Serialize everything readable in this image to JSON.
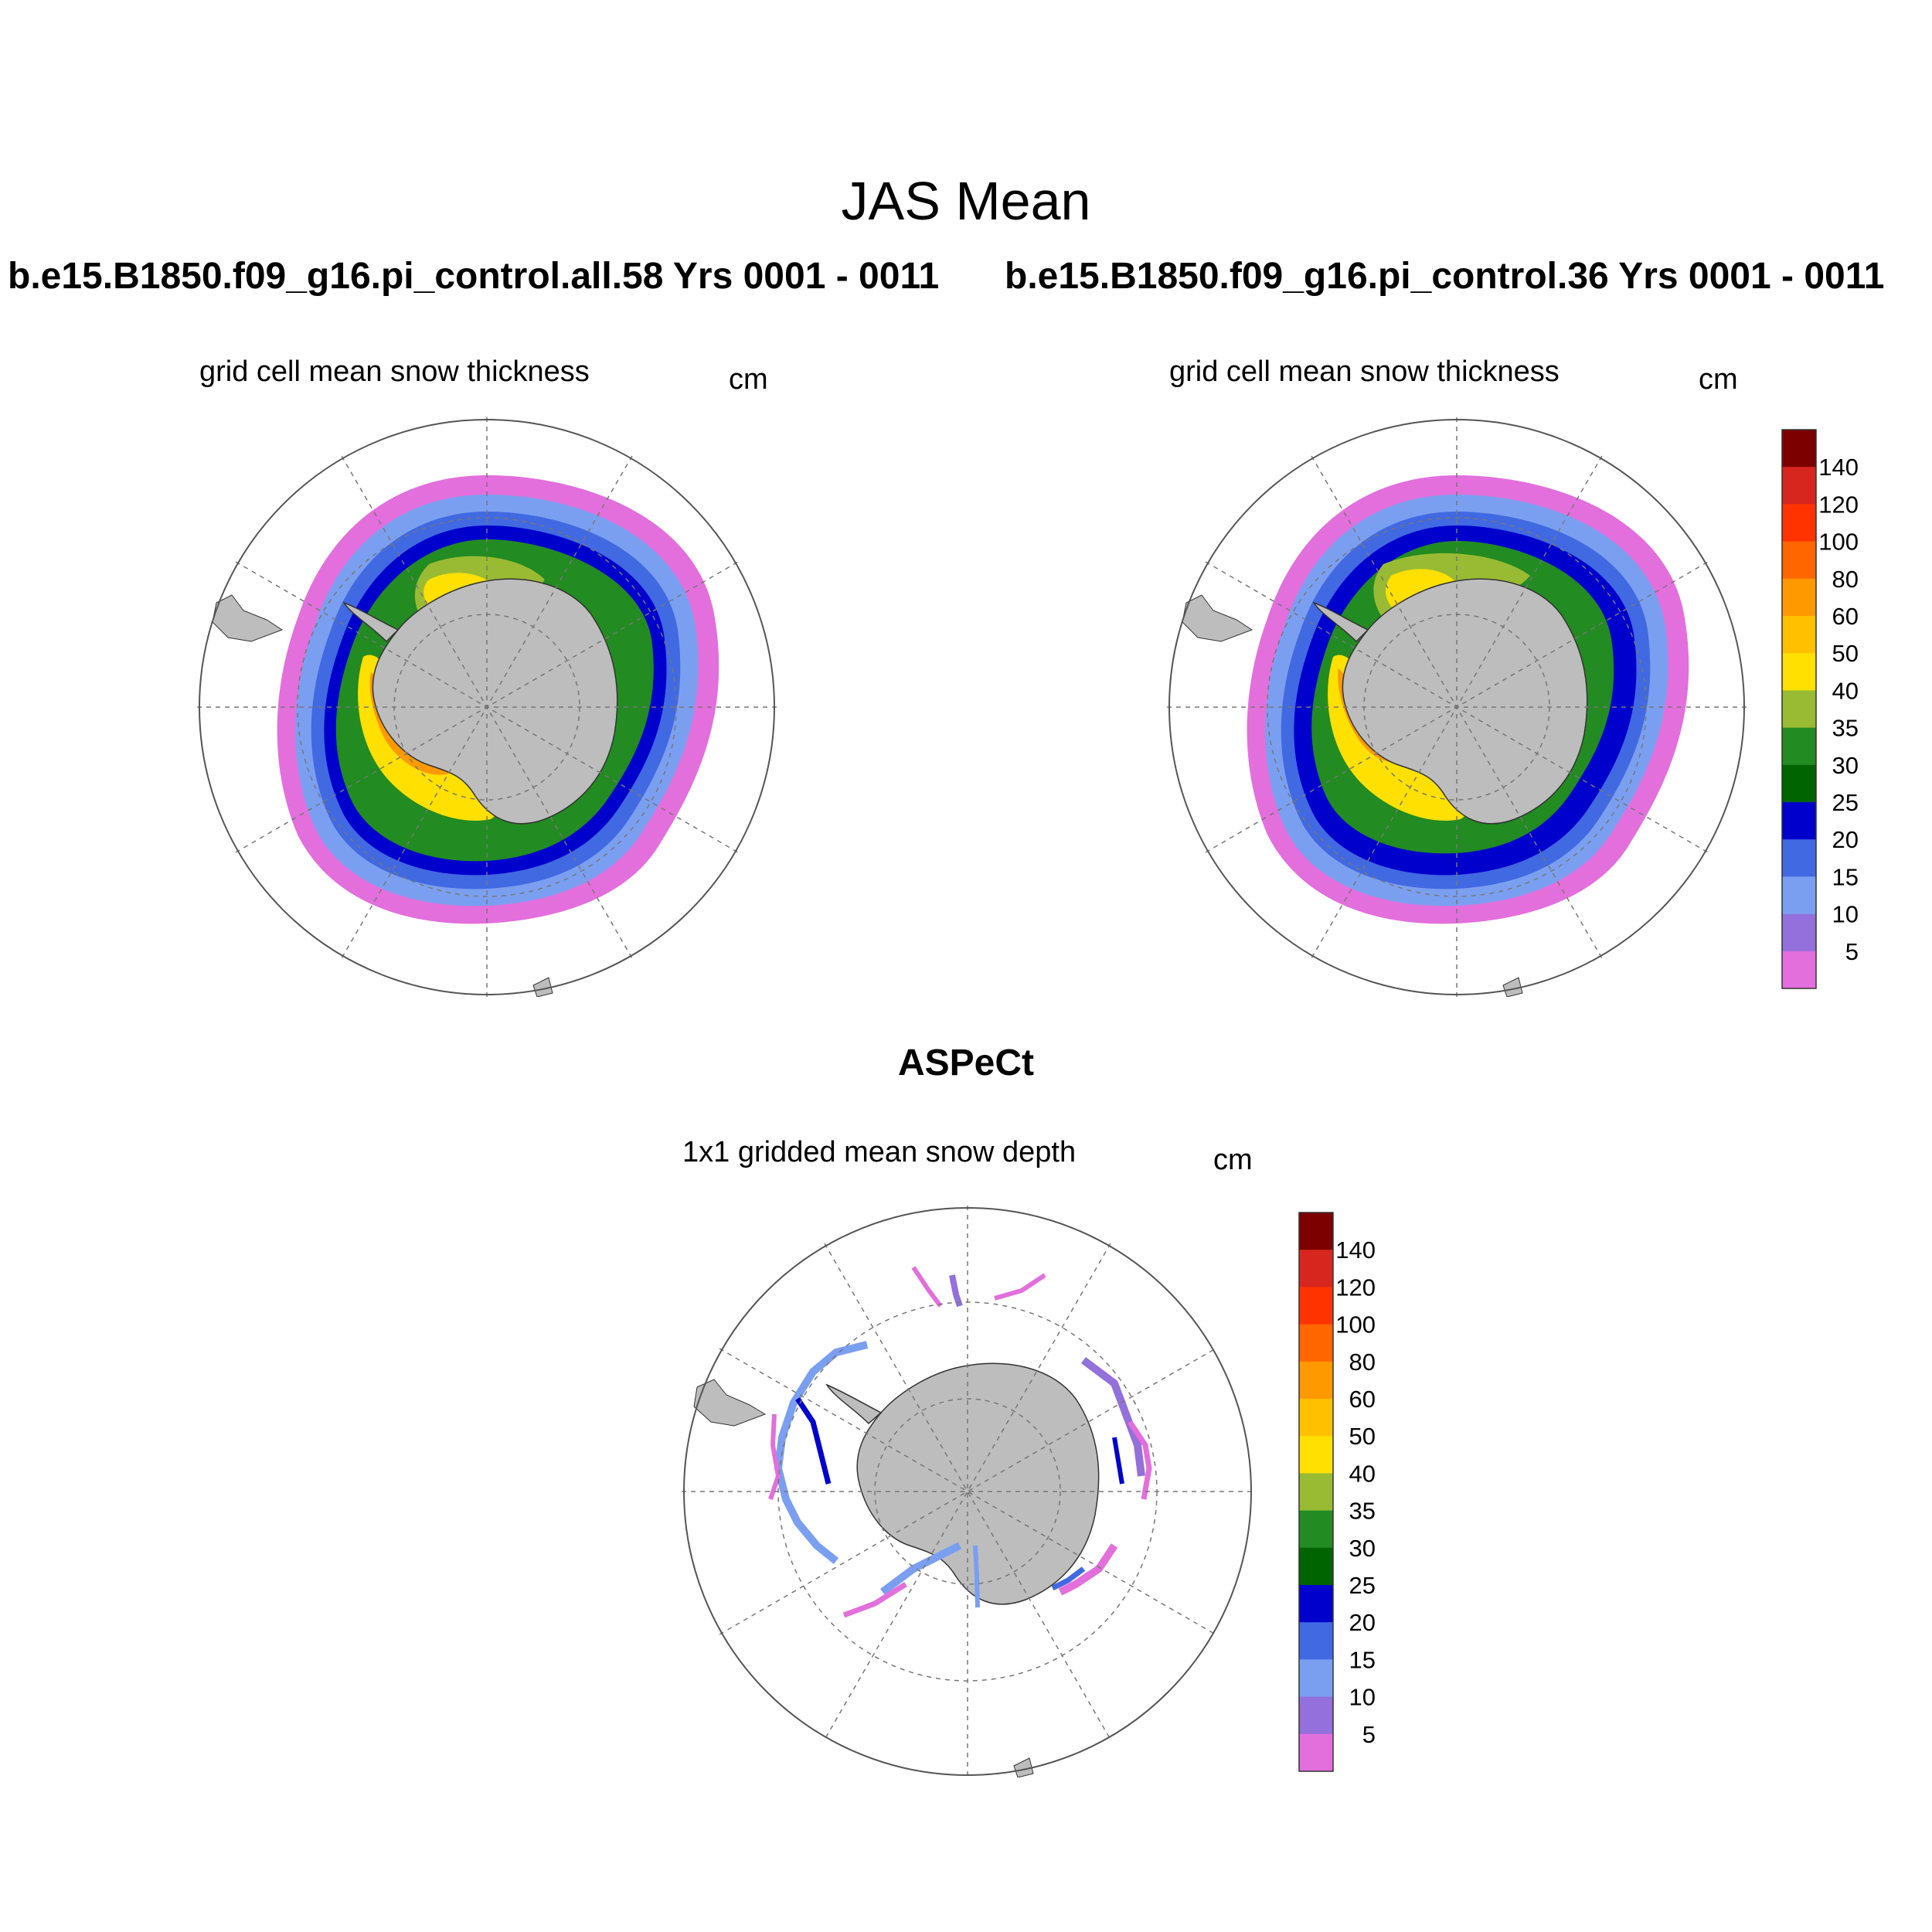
{
  "title": "JAS Mean",
  "case_left": "b.e15.B1850.f09_g16.pi_control.all.58  Yrs 0001 - 0011",
  "case_right": "b.e15.B1850.f09_g16.pi_control.36  Yrs 0001 - 0011",
  "panel_left": {
    "subtitle": "grid cell mean snow thickness",
    "units": "cm"
  },
  "panel_right": {
    "subtitle": "grid cell mean snow thickness",
    "units": "cm"
  },
  "obs_title": "ASPeCt",
  "panel_obs": {
    "subtitle": "1x1 gridded mean snow depth",
    "units": "cm"
  },
  "colorbar": {
    "levels": [
      "140",
      "120",
      "100",
      "80",
      "60",
      "50",
      "40",
      "35",
      "30",
      "25",
      "20",
      "15",
      "10",
      "5"
    ],
    "colors": [
      "#7d0000",
      "#d7261e",
      "#ff3300",
      "#ff6600",
      "#ff9900",
      "#ffc000",
      "#ffe000",
      "#99bb33",
      "#228b22",
      "#006400",
      "#0000cd",
      "#4169e1",
      "#7b9ff0",
      "#9370db",
      "#e36fdc"
    ]
  },
  "colors": {
    "land": "#bdbdbd",
    "grid": "#777777"
  }
}
